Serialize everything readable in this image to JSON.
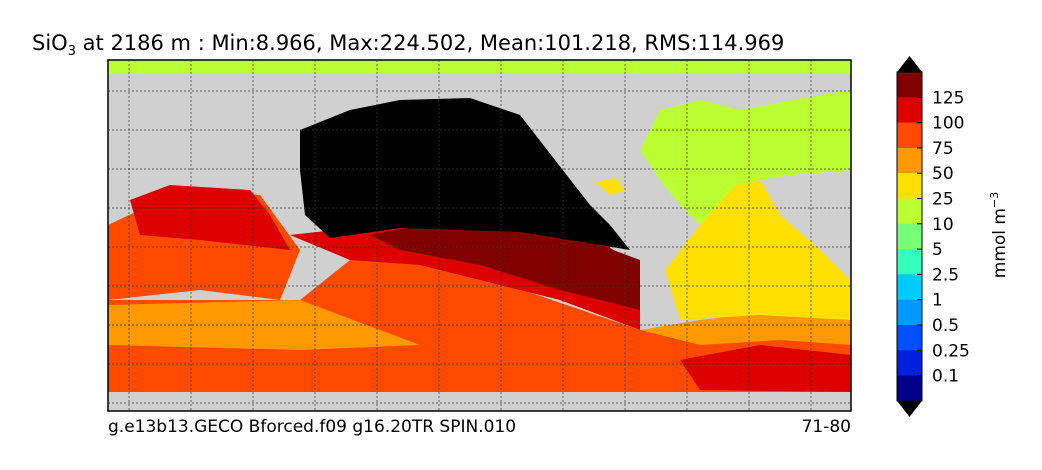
{
  "title": {
    "species": "SiO",
    "subscript": "3",
    "text": " at 2186 m : Min:8.966, Max:224.502, Mean:101.218, RMS:114.969"
  },
  "colorbar": {
    "labels": [
      125,
      100,
      75,
      50,
      25,
      10,
      5,
      2.5,
      1,
      0.5,
      0.25,
      0.1
    ],
    "colors": [
      "#800000",
      "#dd0000",
      "#ff4a00",
      "#ff9900",
      "#ffe000",
      "#bbff33",
      "#77ff77",
      "#33ffbb",
      "#00ccff",
      "#0099ff",
      "#0050ff",
      "#0020dd",
      "#000088"
    ],
    "unit": "mmol m",
    "unit_exponent": "−3"
  },
  "footer": {
    "left": "g.e13b13.GECO Bforced.f09 g16.20TR SPIN.010",
    "right": "71-80"
  }
}
